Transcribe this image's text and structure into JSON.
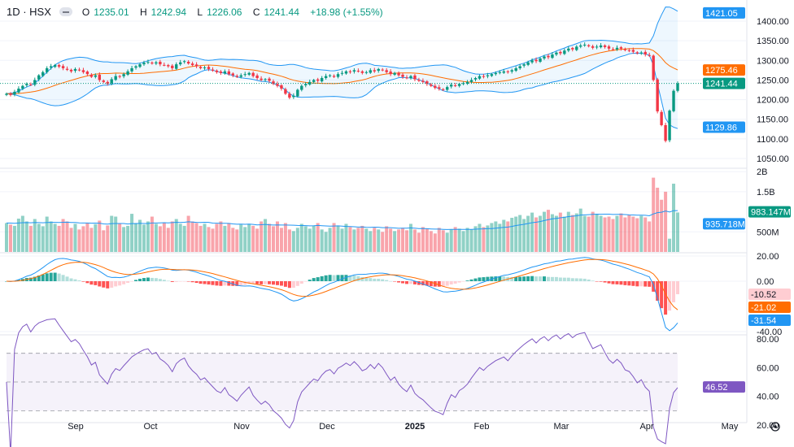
{
  "header": {
    "symbol": "1D · HSX",
    "open_label": "O",
    "open": "1235.01",
    "high_label": "H",
    "high": "1242.94",
    "low_label": "L",
    "low": "1226.06",
    "close_label": "C",
    "close": "1241.44",
    "change": "+18.98 (+1.55%)"
  },
  "colors": {
    "up": "#089981",
    "down": "#f23645",
    "bb": "#2196f3",
    "basis": "#ff6d00",
    "macd": "#2196f3",
    "signal": "#ff6d00",
    "rsi": "#7e57c2",
    "volume_ma": "#2196f3"
  },
  "chart_data": {
    "type": "candlestick",
    "price_axis": {
      "ticks": [
        "1400.00",
        "1350.00",
        "1300.00",
        "1250.00",
        "1200.00",
        "1150.00",
        "1100.00",
        "1050.00"
      ]
    },
    "price_labels": {
      "bb_upper": "1421.05",
      "bb_basis": "1275.46",
      "last": "1241.44",
      "bb_lower": "1129.86"
    },
    "volume_axis": {
      "ticks": [
        "2B",
        "1.5B",
        "500M"
      ]
    },
    "volume_labels": {
      "volume": "983.147M",
      "volume_ma": "935.718M"
    },
    "macd_axis": {
      "ticks": [
        "20.00",
        "0.00",
        "-40.00"
      ]
    },
    "macd_labels": {
      "histogram": "-10.52",
      "signal": "-21.02",
      "macd": "-31.54"
    },
    "rsi_axis": {
      "ticks": [
        "80.00",
        "60.00",
        "40.00",
        "20.00"
      ],
      "bands": [
        70,
        50,
        30
      ]
    },
    "rsi_label": "46.52",
    "x_ticks": [
      "Sep",
      "Oct",
      "Nov",
      "Dec",
      "2025",
      "Feb",
      "Mar",
      "Apr",
      "May"
    ],
    "closes": [
      1215,
      1212,
      1220,
      1228,
      1235,
      1240,
      1238,
      1250,
      1262,
      1270,
      1280,
      1285,
      1288,
      1284,
      1280,
      1276,
      1272,
      1278,
      1275,
      1270,
      1265,
      1258,
      1262,
      1250,
      1245,
      1240,
      1252,
      1260,
      1258,
      1265,
      1272,
      1280,
      1285,
      1290,
      1294,
      1296,
      1292,
      1295,
      1290,
      1288,
      1285,
      1280,
      1290,
      1295,
      1298,
      1292,
      1288,
      1285,
      1280,
      1282,
      1278,
      1274,
      1270,
      1268,
      1272,
      1265,
      1262,
      1258,
      1262,
      1265,
      1268,
      1260,
      1255,
      1250,
      1252,
      1248,
      1240,
      1235,
      1228,
      1215,
      1205,
      1210,
      1225,
      1235,
      1240,
      1245,
      1250,
      1248,
      1255,
      1260,
      1262,
      1258,
      1265,
      1268,
      1272,
      1270,
      1275,
      1272,
      1268,
      1270,
      1275,
      1272,
      1278,
      1275,
      1270,
      1265,
      1268,
      1262,
      1258,
      1255,
      1260,
      1252,
      1248,
      1245,
      1240,
      1235,
      1230,
      1228,
      1225,
      1232,
      1238,
      1235,
      1240,
      1242,
      1245,
      1250,
      1255,
      1260,
      1258,
      1262,
      1265,
      1268,
      1270,
      1272,
      1270,
      1275,
      1280,
      1285,
      1290,
      1295,
      1300,
      1298,
      1305,
      1310,
      1308,
      1315,
      1320,
      1318,
      1325,
      1330,
      1328,
      1335,
      1338,
      1340,
      1336,
      1332,
      1335,
      1338,
      1334,
      1330,
      1328,
      1332,
      1330,
      1326,
      1325,
      1322,
      1318,
      1320,
      1315,
      1312,
      1250,
      1170,
      1135,
      1095,
      1172,
      1222.46,
      1241.44
    ],
    "volumes_m": [
      720,
      680,
      650,
      830,
      900,
      760,
      650,
      820,
      700,
      640,
      880,
      760,
      700,
      650,
      820,
      760,
      600,
      700,
      560,
      640,
      720,
      600,
      690,
      780,
      540,
      660,
      900,
      880,
      700,
      620,
      650,
      950,
      720,
      800,
      680,
      760,
      880,
      700,
      640,
      720,
      600,
      760,
      820,
      700,
      650,
      900,
      760,
      720,
      650,
      700,
      620,
      580,
      700,
      760,
      650,
      720,
      600,
      560,
      680,
      620,
      700,
      650,
      580,
      760,
      820,
      700,
      640,
      760,
      600,
      720,
      560,
      520,
      600,
      700,
      640,
      580,
      650,
      720,
      560,
      500,
      600,
      720,
      650,
      580,
      700,
      620,
      560,
      600,
      650,
      580,
      520,
      600,
      560,
      500,
      640,
      580,
      520,
      560,
      600,
      540,
      700,
      560,
      480,
      620,
      580,
      520,
      460,
      600,
      540,
      480,
      560,
      620,
      580,
      520,
      600,
      560,
      640,
      700,
      620,
      660,
      720,
      760,
      700,
      800,
      760,
      850,
      880,
      920,
      820,
      900,
      980,
      860,
      900,
      1000,
      1050,
      940,
      900,
      980,
      880,
      1000,
      920,
      960,
      1080,
      900,
      880,
      1000,
      940,
      900,
      860,
      880,
      820,
      900,
      960,
      860,
      920,
      880,
      840,
      900,
      860,
      760,
      1850,
      1600,
      1300,
      1500,
      330,
      1700,
      983.147
    ]
  }
}
